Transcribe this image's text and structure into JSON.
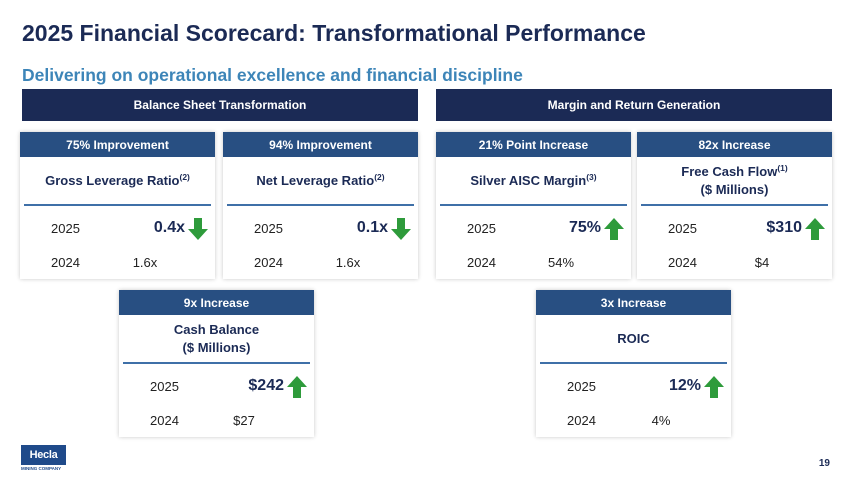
{
  "title": "2025 Financial Scorecard: Transformational Performance",
  "subtitle": "Delivering on operational excellence and financial discipline",
  "sections": [
    {
      "label": "Balance Sheet Transformation"
    },
    {
      "label": "Margin and Return Generation"
    }
  ],
  "cards": [
    {
      "badge": "75% Improvement",
      "metric": "Gross Leverage Ratio",
      "metric_sup": "(2)",
      "metric_line2": "",
      "year_current": "2025",
      "value_current": "0.4x",
      "year_prior": "2024",
      "value_prior": "1.6x",
      "trend_icon": "arrow-down-icon",
      "trend_color": "#2e9b3b"
    },
    {
      "badge": "94% Improvement",
      "metric": "Net Leverage Ratio",
      "metric_sup": "(2)",
      "metric_line2": "",
      "year_current": "2025",
      "value_current": "0.1x",
      "year_prior": "2024",
      "value_prior": "1.6x",
      "trend_icon": "arrow-down-icon",
      "trend_color": "#2e9b3b"
    },
    {
      "badge": "21% Point Increase",
      "metric": "Silver AISC Margin",
      "metric_sup": "(3)",
      "metric_line2": "",
      "year_current": "2025",
      "value_current": "75%",
      "year_prior": "2024",
      "value_prior": "54%",
      "trend_icon": "arrow-up-icon",
      "trend_color": "#2e9b3b"
    },
    {
      "badge": "82x Increase",
      "metric": "Free Cash Flow",
      "metric_sup": "(1)",
      "metric_line2": "($ Millions)",
      "year_current": "2025",
      "value_current": "$310",
      "year_prior": "2024",
      "value_prior": "$4",
      "trend_icon": "arrow-up-icon",
      "trend_color": "#2e9b3b"
    },
    {
      "badge": "9x Increase",
      "metric": "Cash Balance",
      "metric_sup": "",
      "metric_line2": "($ Millions)",
      "year_current": "2025",
      "value_current": "$242",
      "year_prior": "2024",
      "value_prior": "$27",
      "trend_icon": "arrow-up-icon",
      "trend_color": "#2e9b3b"
    },
    {
      "badge": "3x Increase",
      "metric": "ROIC",
      "metric_sup": "",
      "metric_line2": "",
      "year_current": "2025",
      "value_current": "12%",
      "year_prior": "2024",
      "value_prior": "4%",
      "trend_icon": "arrow-up-icon",
      "trend_color": "#2e9b3b"
    }
  ],
  "logo": {
    "name": "Hecla",
    "tagline": "MINING COMPANY"
  },
  "page_number": "19",
  "colors": {
    "navy": "#1b2a55",
    "badge_blue": "#284f82",
    "subtitle_blue": "#3d85b8",
    "arrow_green": "#2e9b3b"
  }
}
